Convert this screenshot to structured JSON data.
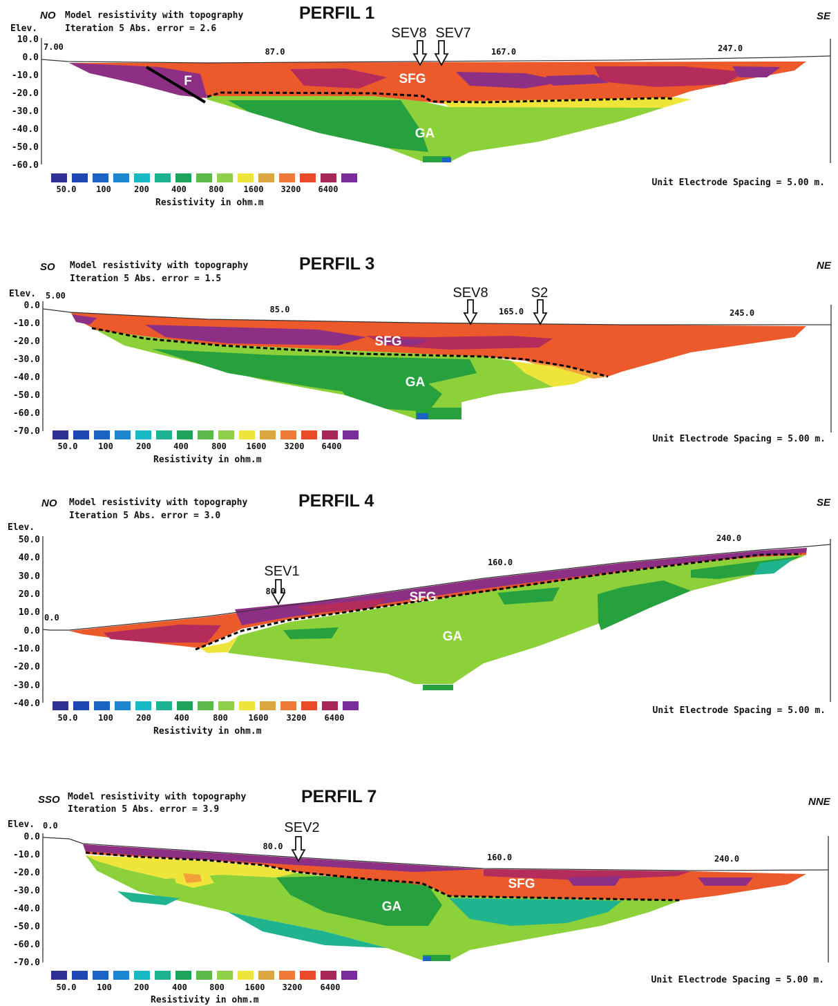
{
  "colors": {
    "scale": [
      "#2e3192",
      "#1f48b4",
      "#1c63c6",
      "#1e86d0",
      "#18b8c4",
      "#1bb392",
      "#1ea35a",
      "#5cba4a",
      "#8fd04a",
      "#eee43a",
      "#d9a640",
      "#f07a3a",
      "#e84a2a",
      "#a8285a",
      "#7a2c9a"
    ],
    "sfg_base": "#ec5a2c",
    "sfg_purple": "#8e2f86",
    "sfg_magenta": "#b32c5c",
    "ga_light": "#8cd13a",
    "ga_dark": "#27a13d",
    "ga_teal": "#1fb38f",
    "yellow": "#eee43a",
    "orange_light": "#f3a13a",
    "blue": "#1c63c6",
    "layer_label": "#ffffff"
  },
  "common": {
    "model_title": "Model resistivity with topography",
    "elev_label": "Elev.",
    "legend_labels": [
      "50.0",
      "100",
      "200",
      "400",
      "800",
      "1600",
      "3200",
      "6400"
    ],
    "legend_unit": "Resistivity in ohm.m",
    "spacing_text": "Unit Electrode Spacing = 5.00 m.",
    "layer_sfg": "SFG",
    "layer_ga": "GA",
    "layer_f": "F"
  },
  "panels": [
    {
      "title": "PERFIL 1",
      "dir_left": "NO",
      "dir_right": "SE",
      "iteration": "Iteration 5 Abs. error = 2.6",
      "y_ticks": [
        "10.0",
        "0.0",
        "-10.0",
        "-20.0",
        "-30.0",
        "-40.0",
        "-50.0",
        "-60.0"
      ],
      "x_ticks": [
        "7.00",
        "87.0",
        "167.0",
        "247.0"
      ],
      "markers": [
        "SEV8",
        "SEV7"
      ]
    },
    {
      "title": "PERFIL 3",
      "dir_left": "SO",
      "dir_right": "NE",
      "iteration": "Iteration 5 Abs. error = 1.5",
      "y_ticks": [
        "0.0",
        "-10.0",
        "-20.0",
        "-30.0",
        "-40.0",
        "-50.0",
        "-60.0",
        "-70.0"
      ],
      "x_ticks": [
        "5.00",
        "85.0",
        "165.0",
        "245.0"
      ],
      "markers": [
        "SEV8",
        "S2"
      ]
    },
    {
      "title": "PERFIL 4",
      "dir_left": "NO",
      "dir_right": "SE",
      "iteration": "Iteration 5 Abs. error = 3.0",
      "y_ticks": [
        "50.0",
        "40.0",
        "30.0",
        "20.0",
        "10.0",
        "0.0",
        "-10.0",
        "-20.0",
        "-30.0",
        "-40.0"
      ],
      "x_ticks": [
        "0.0",
        "80.0",
        "160.0",
        "240.0"
      ],
      "markers": [
        "SEV1"
      ]
    },
    {
      "title": "PERFIL 7",
      "dir_left": "SSO",
      "dir_right": "NNE",
      "iteration": "Iteration 5 Abs. error = 3.9",
      "y_ticks": [
        "0.0",
        "-10.0",
        "-20.0",
        "-30.0",
        "-40.0",
        "-50.0",
        "-60.0",
        "-70.0"
      ],
      "x_ticks": [
        "0.0",
        "80.0",
        "160.0",
        "240.0"
      ],
      "markers": [
        "SEV2"
      ]
    }
  ]
}
